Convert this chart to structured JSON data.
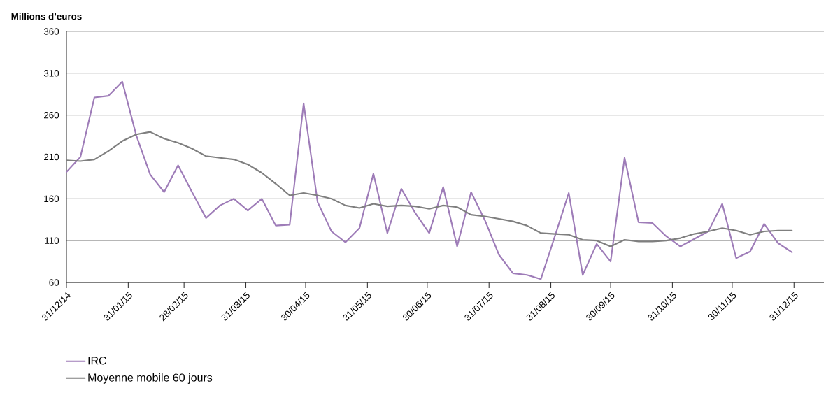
{
  "chart_data": {
    "type": "line",
    "ylabel": "Millions d’euros",
    "x": [
      "2014-12-31",
      "2015-01-07",
      "2015-01-14",
      "2015-01-21",
      "2015-01-28",
      "2015-02-04",
      "2015-02-11",
      "2015-02-18",
      "2015-02-25",
      "2015-03-04",
      "2015-03-11",
      "2015-03-18",
      "2015-03-25",
      "2015-04-01",
      "2015-04-08",
      "2015-04-15",
      "2015-04-22",
      "2015-04-29",
      "2015-05-06",
      "2015-05-13",
      "2015-05-20",
      "2015-05-27",
      "2015-06-03",
      "2015-06-10",
      "2015-06-17",
      "2015-06-24",
      "2015-07-01",
      "2015-07-08",
      "2015-07-15",
      "2015-07-22",
      "2015-07-29",
      "2015-08-05",
      "2015-08-12",
      "2015-08-19",
      "2015-08-26",
      "2015-09-02",
      "2015-09-09",
      "2015-09-16",
      "2015-09-23",
      "2015-09-30",
      "2015-10-07",
      "2015-10-14",
      "2015-10-21",
      "2015-10-28",
      "2015-11-04",
      "2015-11-11",
      "2015-11-18",
      "2015-11-25",
      "2015-12-02",
      "2015-12-09",
      "2015-12-16",
      "2015-12-23",
      "2015-12-30"
    ],
    "series": [
      {
        "name": "IRC",
        "color": "#9e7cb8",
        "values": [
          192,
          210,
          281,
          283,
          300,
          236,
          189,
          168,
          200,
          168,
          137,
          152,
          160,
          146,
          160,
          128,
          129,
          274,
          156,
          121,
          108,
          125,
          190,
          119,
          172,
          143,
          119,
          174,
          103,
          168,
          134,
          93,
          71,
          69,
          64,
          115,
          167,
          69,
          106,
          85,
          209,
          132,
          131,
          115,
          103,
          112,
          121,
          154,
          89,
          97,
          130,
          107,
          96
        ]
      },
      {
        "name": "Moyenne mobile 60 jours",
        "color": "#7f7f7f",
        "values": [
          206,
          205,
          207,
          217,
          229,
          237,
          240,
          232,
          227,
          220,
          211,
          209,
          207,
          201,
          191,
          178,
          164,
          167,
          164,
          160,
          152,
          149,
          154,
          151,
          152,
          151,
          148,
          152,
          150,
          141,
          139,
          136,
          133,
          128,
          119,
          118,
          117,
          111,
          110,
          103,
          111,
          109,
          109,
          110,
          113,
          118,
          121,
          125,
          122,
          117,
          121,
          122,
          122
        ]
      }
    ],
    "xlim": [
      "2014-12-31",
      "2016-01-15"
    ],
    "xticks": [
      {
        "value": "2014-12-31",
        "label": "31/12/14"
      },
      {
        "value": "2015-01-31",
        "label": "31/01/15"
      },
      {
        "value": "2015-02-28",
        "label": "28/02/15"
      },
      {
        "value": "2015-03-31",
        "label": "31/03/15"
      },
      {
        "value": "2015-04-30",
        "label": "30/04/15"
      },
      {
        "value": "2015-05-31",
        "label": "31/05/15"
      },
      {
        "value": "2015-06-30",
        "label": "30/06/15"
      },
      {
        "value": "2015-07-31",
        "label": "31/07/15"
      },
      {
        "value": "2015-08-31",
        "label": "31/08/15"
      },
      {
        "value": "2015-09-30",
        "label": "30/09/15"
      },
      {
        "value": "2015-10-31",
        "label": "31/10/15"
      },
      {
        "value": "2015-11-30",
        "label": "30/11/15"
      },
      {
        "value": "2015-12-31",
        "label": "31/12/15"
      }
    ],
    "ylim": [
      60,
      360
    ],
    "yticks": [
      60,
      110,
      160,
      210,
      260,
      310,
      360
    ],
    "grid": "y",
    "legend": "bottom left",
    "marker": "none",
    "line_style": "solid"
  }
}
